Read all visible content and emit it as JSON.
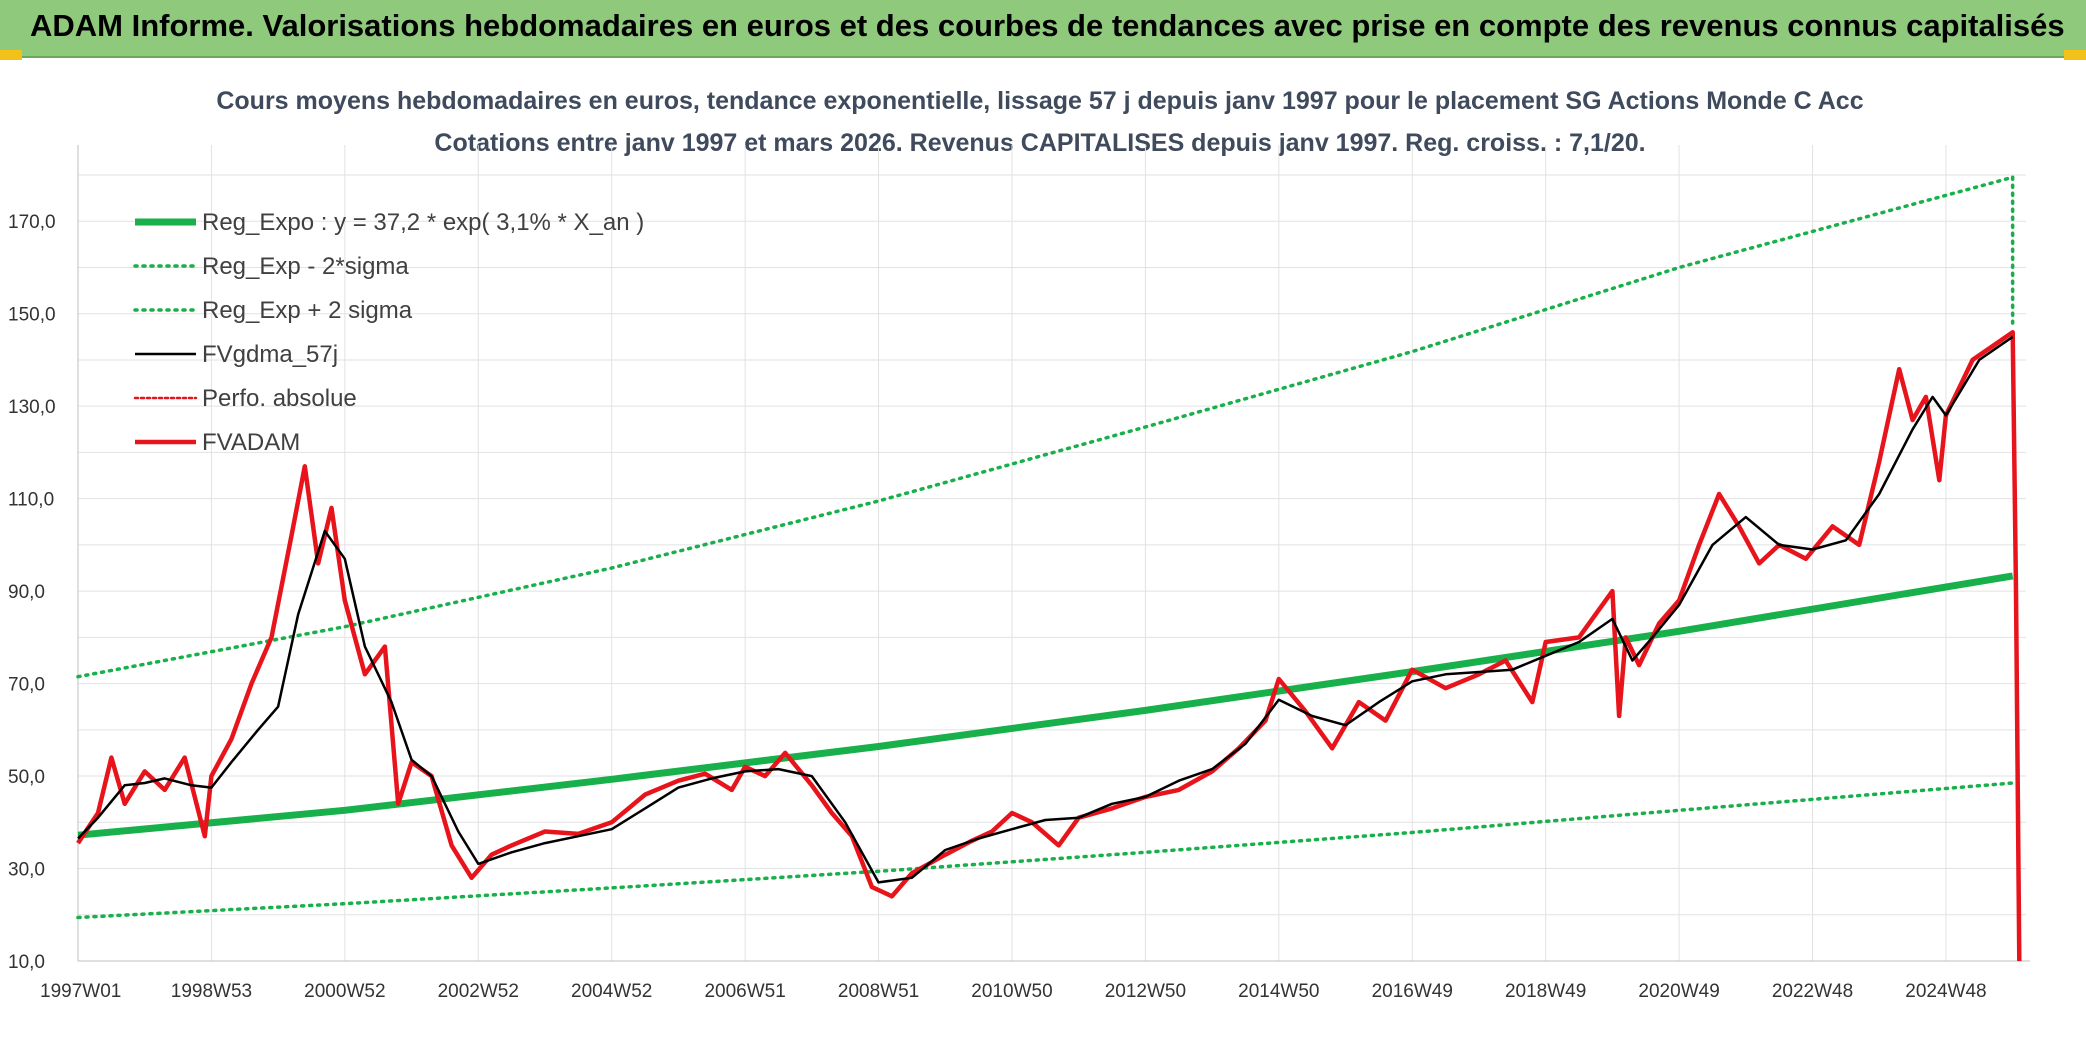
{
  "banner": {
    "title": "ADAM Informe. Valorisations hebdomadaires en euros et des courbes de tendances avec prise en compte des revenus connus capitalisés"
  },
  "colors": {
    "banner_bg": "#8ec97c",
    "trend": "#18b04a",
    "smooth": "#000000",
    "price": "#e8141c"
  },
  "chart_data": {
    "type": "line",
    "title": "Cours moyens hebdomadaires en euros, tendance exponentielle, lissage 57 j depuis janv 1997 pour le placement SG Actions Monde C Acc",
    "subtitle": "Cotations entre janv 1997 et mars 2026. Revenus CAPITALISES depuis janv 1997. Reg. croiss. : 7,1/20.",
    "xlabel": "",
    "ylabel": "",
    "ylim": [
      10,
      180
    ],
    "yticks": [
      "10,0",
      "30,0",
      "50,0",
      "70,0",
      "90,0",
      "110,0",
      "130,0",
      "150,0",
      "170,0"
    ],
    "ytick_values": [
      10,
      30,
      50,
      70,
      90,
      110,
      130,
      150,
      170
    ],
    "xlim": [
      1997.0,
      2026.2
    ],
    "xtick_labels": [
      "1997W01",
      "1998W53",
      "2000W52",
      "2002W52",
      "2004W52",
      "2006W51",
      "2008W51",
      "2010W50",
      "2012W50",
      "2014W50",
      "2016W49",
      "2018W49",
      "2020W49",
      "2022W48",
      "2024W48"
    ],
    "xtick_values": [
      1997.0,
      1999.0,
      2001.0,
      2003.0,
      2005.0,
      2007.0,
      2009.0,
      2011.0,
      2013.0,
      2015.0,
      2017.0,
      2019.0,
      2021.0,
      2023.0,
      2025.0
    ],
    "grid": true,
    "legend_position": "top-left",
    "series": [
      {
        "name": "Reg_Expo : y = 37,2 * exp( 3,1% *  X_an )",
        "style": "solid-thick",
        "color": "#18b04a",
        "x": [
          1997.0,
          2001.0,
          2005.0,
          2009.0,
          2013.0,
          2017.0,
          2021.0,
          2026.0
        ],
        "y": [
          37.2,
          42.6,
          49.3,
          56.4,
          64.2,
          72.6,
          81.3,
          93.3
        ]
      },
      {
        "name": "Reg_Exp - 2*sigma",
        "style": "dotted",
        "color": "#18b04a",
        "x": [
          1997.0,
          2001.0,
          2005.0,
          2009.0,
          2013.0,
          2017.0,
          2021.0,
          2026.0
        ],
        "y": [
          19.4,
          22.4,
          25.8,
          29.4,
          33.5,
          37.8,
          42.6,
          48.5
        ]
      },
      {
        "name": "Reg_Exp + 2 sigma",
        "style": "dotted",
        "color": "#18b04a",
        "x": [
          1997.0,
          2001.0,
          2005.0,
          2009.0,
          2013.0,
          2017.0,
          2021.0,
          2026.0
        ],
        "y": [
          71.5,
          82.3,
          95.0,
          109.5,
          125.5,
          141.8,
          160.0,
          179.5
        ]
      },
      {
        "name": "FVgdma_57j",
        "style": "solid-thin",
        "color": "#000000",
        "x": [
          1997.0,
          1997.3,
          1997.7,
          1998.0,
          1998.3,
          1998.7,
          1999.0,
          1999.3,
          1999.7,
          2000.0,
          2000.3,
          2000.7,
          2001.0,
          2001.3,
          2001.7,
          2002.0,
          2002.3,
          2002.7,
          2003.0,
          2003.5,
          2004.0,
          2004.5,
          2005.0,
          2005.5,
          2006.0,
          2006.5,
          2007.0,
          2007.5,
          2008.0,
          2008.5,
          2009.0,
          2009.5,
          2010.0,
          2010.5,
          2011.0,
          2011.5,
          2012.0,
          2012.5,
          2013.0,
          2013.5,
          2014.0,
          2014.5,
          2015.0,
          2015.5,
          2016.0,
          2016.5,
          2017.0,
          2017.5,
          2018.0,
          2018.5,
          2019.0,
          2019.5,
          2020.0,
          2020.3,
          2020.6,
          2021.0,
          2021.5,
          2022.0,
          2022.5,
          2023.0,
          2023.5,
          2024.0,
          2024.5,
          2024.8,
          2025.0,
          2025.5,
          2026.0
        ],
        "y": [
          36.5,
          41.0,
          48.0,
          48.5,
          49.5,
          48.0,
          47.5,
          53.0,
          60.0,
          65.0,
          85.0,
          103.0,
          97.0,
          78.0,
          66.0,
          53.5,
          50.0,
          38.0,
          31.0,
          33.5,
          35.5,
          37.0,
          38.5,
          43.0,
          47.5,
          49.5,
          51.0,
          51.5,
          50.0,
          40.0,
          27.0,
          28.0,
          34.0,
          36.5,
          38.5,
          40.5,
          41.0,
          44.0,
          45.5,
          49.0,
          51.5,
          57.0,
          66.5,
          63.0,
          61.0,
          66.0,
          70.5,
          72.0,
          72.5,
          73.0,
          76.0,
          79.0,
          84.0,
          75.0,
          80.0,
          87.0,
          100.0,
          106.0,
          100.0,
          99.0,
          101.0,
          111.0,
          125.0,
          132.0,
          128.0,
          140.0,
          145.0
        ]
      },
      {
        "name": "Perfo. absolue",
        "style": "dotted",
        "color": "#e8141c",
        "x": [],
        "y": []
      },
      {
        "name": "FVADAM",
        "style": "solid-thick",
        "color": "#e8141c",
        "x": [
          1997.0,
          1997.3,
          1997.5,
          1997.7,
          1998.0,
          1998.3,
          1998.6,
          1998.9,
          1999.0,
          1999.3,
          1999.6,
          1999.9,
          2000.2,
          2000.4,
          2000.6,
          2000.8,
          2001.0,
          2001.3,
          2001.6,
          2001.8,
          2002.0,
          2002.3,
          2002.6,
          2002.9,
          2003.2,
          2003.5,
          2004.0,
          2004.5,
          2005.0,
          2005.5,
          2006.0,
          2006.4,
          2006.8,
          2007.0,
          2007.3,
          2007.6,
          2008.0,
          2008.3,
          2008.6,
          2008.9,
          2009.2,
          2009.5,
          2010.0,
          2010.4,
          2010.7,
          2011.0,
          2011.3,
          2011.7,
          2012.0,
          2012.5,
          2013.0,
          2013.5,
          2014.0,
          2014.4,
          2014.8,
          2015.0,
          2015.4,
          2015.8,
          2016.2,
          2016.6,
          2017.0,
          2017.5,
          2018.0,
          2018.4,
          2018.8,
          2019.0,
          2019.5,
          2020.0,
          2020.1,
          2020.2,
          2020.4,
          2020.7,
          2021.0,
          2021.3,
          2021.6,
          2021.9,
          2022.2,
          2022.5,
          2022.9,
          2023.3,
          2023.7,
          2024.0,
          2024.3,
          2024.5,
          2024.7,
          2024.9,
          2025.0,
          2025.2,
          2025.4,
          2025.7,
          2026.0,
          2026.05,
          2026.1
        ],
        "y": [
          35.5,
          42.0,
          54.0,
          44.0,
          51.0,
          47.0,
          54.0,
          37.0,
          50.0,
          58.0,
          70.0,
          80.0,
          102.0,
          117.0,
          96.0,
          108.0,
          88.0,
          72.0,
          78.0,
          44.0,
          53.0,
          50.0,
          35.0,
          28.0,
          33.0,
          35.0,
          38.0,
          37.5,
          40.0,
          46.0,
          49.0,
          50.5,
          47.0,
          52.0,
          50.0,
          55.0,
          48.0,
          42.0,
          37.0,
          26.0,
          24.0,
          29.0,
          33.0,
          36.0,
          38.0,
          42.0,
          40.0,
          35.0,
          41.0,
          43.0,
          45.5,
          47.0,
          51.0,
          56.0,
          62.0,
          71.0,
          64.0,
          56.0,
          66.0,
          62.0,
          73.0,
          69.0,
          72.0,
          75.0,
          66.0,
          79.0,
          80.0,
          90.0,
          63.0,
          80.0,
          74.0,
          83.0,
          88.0,
          100.0,
          111.0,
          104.0,
          96.0,
          100.0,
          97.0,
          104.0,
          100.0,
          118.0,
          138.0,
          127.0,
          132.0,
          114.0,
          128.0,
          134.0,
          140.0,
          143.0,
          146.0,
          90.0,
          10.0
        ]
      }
    ]
  }
}
